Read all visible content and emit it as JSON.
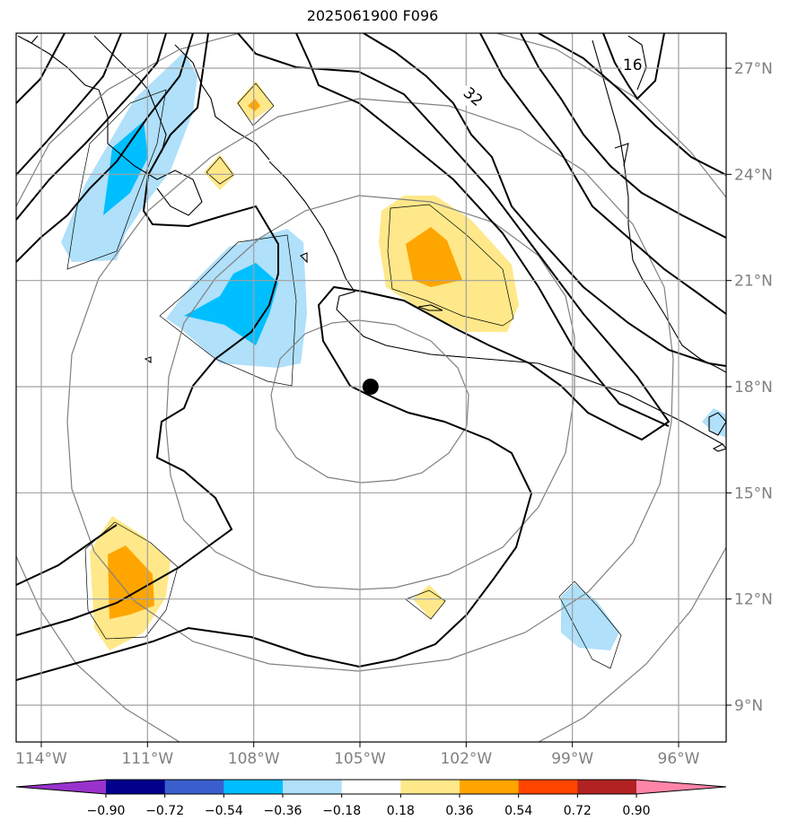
{
  "title": "2025061900 F096",
  "map": {
    "lon_range": [
      -115,
      -94
    ],
    "lat_range": [
      8,
      28
    ],
    "lon_ticks": [
      {
        "value": -114,
        "label": "114°W"
      },
      {
        "value": -111,
        "label": "111°W"
      },
      {
        "value": -108,
        "label": "108°W"
      },
      {
        "value": -105,
        "label": "105°W"
      },
      {
        "value": -102,
        "label": "102°W"
      },
      {
        "value": -99,
        "label": "99°W"
      },
      {
        "value": -96,
        "label": "96°W"
      }
    ],
    "lat_ticks": [
      {
        "value": 27,
        "label": "27°N"
      },
      {
        "value": 24,
        "label": "24°N"
      },
      {
        "value": 21,
        "label": "21°N"
      },
      {
        "value": 18,
        "label": "18°N"
      },
      {
        "value": 15,
        "label": "15°N"
      },
      {
        "value": 12,
        "label": "12°N"
      },
      {
        "value": 9,
        "label": "9°N"
      }
    ],
    "grid": true,
    "center_marker": {
      "lon": -104.7,
      "lat": 18.0
    },
    "contour_labels": [
      {
        "text": "32",
        "lon": -101.8,
        "lat": 26.2
      },
      {
        "text": "16",
        "lon": -97.3,
        "lat": 27.1
      }
    ],
    "range_rings_count": 4
  },
  "colorbar": {
    "levels": [
      "-0.90",
      "-0.72",
      "-0.54",
      "-0.36",
      "-0.18",
      "0.18",
      "0.36",
      "0.54",
      "0.72",
      "0.90"
    ],
    "colors": [
      "#9932cc",
      "#00008b",
      "#3a5fcd",
      "#00bfff",
      "#b0e0fa",
      "#ffffff",
      "#ffe88a",
      "#ffa500",
      "#ff4500",
      "#b22222",
      "#ff85a8"
    ]
  }
}
